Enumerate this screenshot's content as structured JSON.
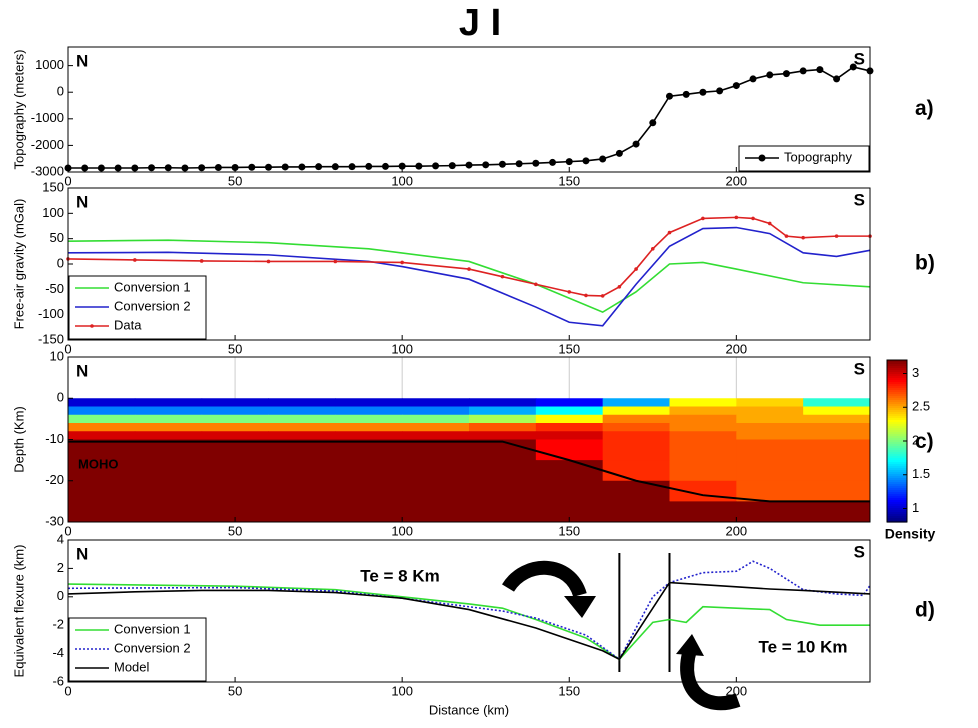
{
  "chart_data": [
    {
      "type": "line",
      "title": "J I",
      "ylabel": "Topography (meters)",
      "left_label": "N",
      "right_label": "S",
      "panel": "a)",
      "xlim": [
        0,
        240
      ],
      "xticks": [
        0,
        50,
        100,
        150,
        200
      ],
      "ylim": [
        -3000,
        1700
      ],
      "yticks": [
        1000,
        0,
        -1000,
        -2000,
        -3000
      ],
      "legend": "lower right",
      "series": [
        {
          "name": "Topography",
          "color": "#000000",
          "marker": 3.5,
          "x": [
            0,
            5,
            10,
            15,
            20,
            25,
            30,
            35,
            40,
            45,
            50,
            55,
            60,
            65,
            70,
            75,
            80,
            85,
            90,
            95,
            100,
            105,
            110,
            115,
            120,
            125,
            130,
            135,
            140,
            145,
            150,
            155,
            160,
            165,
            170,
            175,
            180,
            185,
            190,
            195,
            200,
            205,
            210,
            215,
            220,
            225,
            230,
            235,
            240
          ],
          "values": [
            -2850,
            -2850,
            -2850,
            -2850,
            -2850,
            -2840,
            -2840,
            -2850,
            -2840,
            -2830,
            -2830,
            -2820,
            -2820,
            -2810,
            -2810,
            -2800,
            -2800,
            -2800,
            -2790,
            -2790,
            -2780,
            -2780,
            -2770,
            -2760,
            -2740,
            -2730,
            -2710,
            -2690,
            -2670,
            -2640,
            -2610,
            -2580,
            -2510,
            -2300,
            -1950,
            -1150,
            -150,
            -80,
            0,
            50,
            250,
            500,
            650,
            700,
            800,
            850,
            500,
            950,
            800
          ]
        }
      ]
    },
    {
      "type": "line",
      "ylabel": "Free-air gravity (mGal)",
      "left_label": "N",
      "right_label": "S",
      "panel": "b)",
      "xlim": [
        0,
        240
      ],
      "xticks": [
        0,
        50,
        100,
        150,
        200
      ],
      "ylim": [
        -150,
        150
      ],
      "yticks": [
        150,
        100,
        50,
        0,
        -50,
        -100,
        -150
      ],
      "legend": "lower left",
      "series": [
        {
          "name": "Conversion 1",
          "color": "#33dd33",
          "x": [
            0,
            30,
            60,
            90,
            120,
            140,
            160,
            170,
            180,
            190,
            200,
            220,
            240
          ],
          "values": [
            45,
            47,
            42,
            30,
            5,
            -40,
            -95,
            -55,
            0,
            3,
            -10,
            -37,
            -45
          ]
        },
        {
          "name": "Conversion 2",
          "color": "#2222cc",
          "x": [
            0,
            30,
            60,
            90,
            100,
            120,
            140,
            150,
            160,
            170,
            180,
            190,
            200,
            210,
            220,
            230,
            240
          ],
          "values": [
            22,
            23,
            18,
            5,
            -5,
            -30,
            -85,
            -115,
            -122,
            -40,
            35,
            70,
            72,
            60,
            22,
            15,
            27
          ]
        },
        {
          "name": "Data",
          "color": "#dd2222",
          "marker": 1.8,
          "x": [
            0,
            20,
            40,
            60,
            80,
            100,
            120,
            130,
            140,
            150,
            155,
            160,
            165,
            170,
            175,
            180,
            190,
            200,
            205,
            210,
            215,
            220,
            230,
            240
          ],
          "values": [
            10,
            8,
            6,
            5,
            5,
            3,
            -10,
            -25,
            -40,
            -55,
            -62,
            -63,
            -45,
            -10,
            30,
            62,
            90,
            92,
            90,
            80,
            55,
            52,
            55,
            55
          ]
        }
      ]
    },
    {
      "type": "heatmap",
      "ylabel": "Depth (Km)",
      "left_label": "N",
      "right_label": "S",
      "panel": "c)",
      "annotations": [
        "MOHO"
      ],
      "xlim": [
        0,
        240
      ],
      "xticks": [
        0,
        50,
        100,
        150,
        200
      ],
      "ylim": [
        -30,
        10
      ],
      "yticks": [
        10,
        0,
        -10,
        -20,
        -30
      ],
      "xgrid": true,
      "x_edges": [
        0,
        20,
        40,
        60,
        80,
        100,
        120,
        140,
        160,
        180,
        200,
        220,
        240
      ],
      "y_edges": [
        0,
        -2,
        -4,
        -6,
        -8,
        -10,
        -15,
        -20,
        -25,
        -30
      ],
      "z": [
        [
          1.0,
          1.0,
          1.0,
          1.0,
          1.0,
          1.0,
          1.0,
          1.1,
          1.5,
          2.3,
          2.4,
          1.8
        ],
        [
          1.4,
          1.4,
          1.4,
          1.4,
          1.4,
          1.4,
          1.5,
          1.7,
          2.3,
          2.5,
          2.5,
          2.3
        ],
        [
          2.0,
          2.0,
          2.0,
          2.0,
          2.0,
          2.0,
          2.1,
          2.3,
          2.6,
          2.6,
          2.5,
          2.5
        ],
        [
          2.6,
          2.6,
          2.6,
          2.6,
          2.6,
          2.6,
          2.7,
          2.8,
          2.7,
          2.6,
          2.6,
          2.6
        ],
        [
          3.0,
          3.0,
          3.0,
          3.0,
          3.0,
          3.0,
          3.0,
          3.0,
          2.8,
          2.7,
          2.6,
          2.6
        ],
        [
          3.2,
          3.2,
          3.2,
          3.2,
          3.2,
          3.2,
          3.2,
          2.9,
          2.8,
          2.7,
          2.7,
          2.7
        ],
        [
          3.2,
          3.2,
          3.2,
          3.2,
          3.2,
          3.2,
          3.2,
          3.2,
          2.8,
          2.7,
          2.7,
          2.7
        ],
        [
          3.2,
          3.2,
          3.2,
          3.2,
          3.2,
          3.2,
          3.2,
          3.2,
          3.2,
          2.8,
          2.7,
          2.7
        ],
        [
          3.2,
          3.2,
          3.2,
          3.2,
          3.2,
          3.2,
          3.2,
          3.2,
          3.2,
          3.2,
          3.2,
          3.2
        ]
      ],
      "colorbar": {
        "label": "Density",
        "clim": [
          0.8,
          3.2
        ],
        "ticks": [
          3,
          2.5,
          2,
          1.5,
          1
        ]
      },
      "series": [
        {
          "name": "MOHO",
          "color": "#000000",
          "x": [
            0,
            130,
            150,
            170,
            190,
            210,
            240
          ],
          "values": [
            -10.5,
            -10.5,
            -15,
            -20,
            -23.5,
            -25,
            -25
          ]
        }
      ]
    },
    {
      "type": "line",
      "ylabel": "Equivalent flexure (km)",
      "xlabel": "Distance (km)",
      "left_label": "N",
      "right_label": "S",
      "panel": "d)",
      "annotations": [
        "Te = 8 Km",
        "Te = 10 Km"
      ],
      "vlines": [
        165,
        180
      ],
      "xlim": [
        0,
        240
      ],
      "xticks": [
        0,
        50,
        100,
        150,
        200
      ],
      "ylim": [
        -6,
        4
      ],
      "yticks": [
        4,
        2,
        0,
        -2,
        -4,
        -6
      ],
      "legend": "lower left",
      "series": [
        {
          "name": "Conversion 1",
          "color": "#33dd33",
          "x": [
            0,
            50,
            80,
            100,
            120,
            130,
            140,
            155,
            165,
            175,
            180,
            185,
            190,
            200,
            210,
            215,
            225,
            240
          ],
          "values": [
            0.9,
            0.75,
            0.5,
            0,
            -0.5,
            -0.8,
            -1.6,
            -2.9,
            -4.4,
            -1.8,
            -1.6,
            -1.8,
            -0.7,
            -0.8,
            -0.9,
            -1.6,
            -2.0,
            -2.0
          ]
        },
        {
          "name": "Conversion 2",
          "color": "#2222cc",
          "dash": "dotted",
          "x": [
            0,
            50,
            80,
            100,
            120,
            130,
            140,
            155,
            165,
            175,
            180,
            190,
            200,
            205,
            210,
            220,
            230,
            238,
            240
          ],
          "values": [
            0.6,
            0.65,
            0.4,
            -0.1,
            -0.7,
            -1.0,
            -1.5,
            -2.7,
            -4.4,
            0,
            1.0,
            1.7,
            1.8,
            2.5,
            2.0,
            0.5,
            0.2,
            0.1,
            0.8
          ]
        },
        {
          "name": "Model",
          "color": "#000000",
          "x": [
            0,
            20,
            40,
            60,
            80,
            100,
            120,
            140,
            160,
            165,
            170,
            180,
            190,
            200,
            210,
            220,
            240
          ],
          "values": [
            0.2,
            0.35,
            0.45,
            0.45,
            0.3,
            -0.1,
            -0.9,
            -2.2,
            -3.8,
            -4.4,
            -2.6,
            1.0,
            0.85,
            0.7,
            0.55,
            0.45,
            0.2
          ]
        }
      ]
    }
  ]
}
